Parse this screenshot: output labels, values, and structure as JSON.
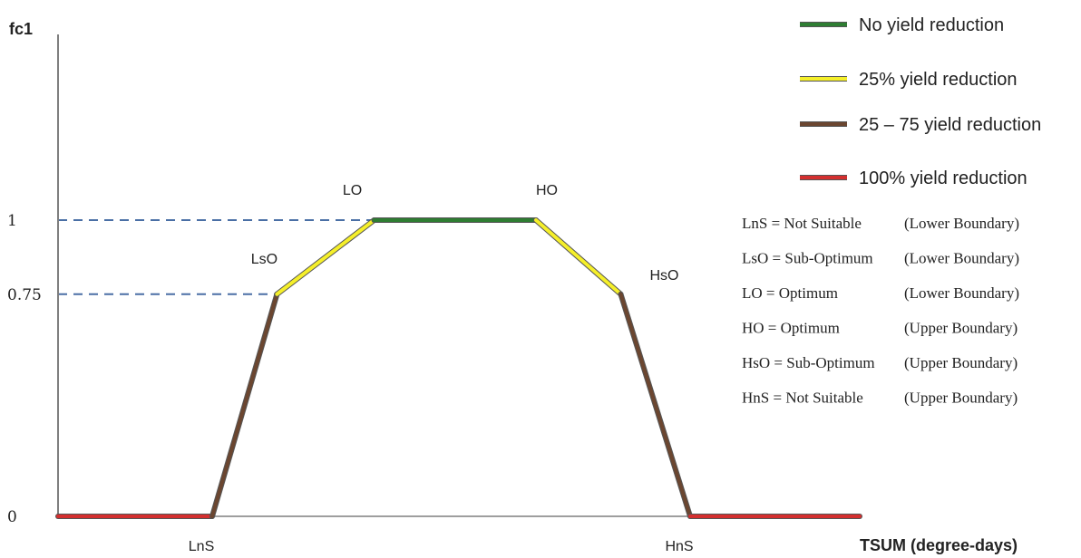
{
  "chart_data": {
    "type": "line",
    "title": "",
    "ylabel": "fc1",
    "xlabel": "TSUM (degree-days)",
    "ylim": [
      0,
      1.45
    ],
    "y_ticks": [
      {
        "value": 0,
        "label": "0"
      },
      {
        "value": 0.75,
        "label": "0.75"
      },
      {
        "value": 1,
        "label": "1"
      }
    ],
    "x_ticks": [
      {
        "key": "LnS",
        "label": "LnS"
      },
      {
        "key": "HnS",
        "label": "HnS"
      }
    ],
    "points": [
      {
        "key": "start",
        "x": 0,
        "y": 0
      },
      {
        "key": "LnS",
        "x": 1,
        "y": 0
      },
      {
        "key": "LsO",
        "x": 1.42,
        "y": 0.75
      },
      {
        "key": "LO",
        "x": 2.05,
        "y": 1
      },
      {
        "key": "HO",
        "x": 3.1,
        "y": 1
      },
      {
        "key": "HsO",
        "x": 3.65,
        "y": 0.75
      },
      {
        "key": "HnS",
        "x": 4.1,
        "y": 0
      },
      {
        "key": "end",
        "x": 5.2,
        "y": 0
      }
    ],
    "point_labels": [
      {
        "key": "LsO",
        "label": "LsO"
      },
      {
        "key": "LO",
        "label": "LO"
      },
      {
        "key": "HO",
        "label": "HO"
      },
      {
        "key": "HsO",
        "label": "HsO"
      }
    ],
    "segments": [
      {
        "from": "start",
        "to": "LnS",
        "class": "100% yield reduction"
      },
      {
        "from": "LnS",
        "to": "LsO",
        "class": "25 – 75 yield reduction"
      },
      {
        "from": "LsO",
        "to": "LO",
        "class": "25% yield reduction"
      },
      {
        "from": "LO",
        "to": "HO",
        "class": "No yield reduction"
      },
      {
        "from": "HO",
        "to": "HsO",
        "class": "25% yield reduction"
      },
      {
        "from": "HsO",
        "to": "HnS",
        "class": "25 – 75 yield reduction"
      },
      {
        "from": "HnS",
        "to": "end",
        "class": "100% yield reduction"
      }
    ],
    "reference_lines": [
      {
        "to": "LO",
        "y": 1
      },
      {
        "to": "LsO",
        "y": 0.75
      }
    ],
    "legend_position": "top-right",
    "legend": [
      {
        "label": "No yield reduction",
        "color": "#2e7d32"
      },
      {
        "label": "25% yield reduction",
        "color": "#f5ef2a"
      },
      {
        "label": "25 – 75 yield reduction",
        "color": "#6b4630"
      },
      {
        "label": "100% yield reduction",
        "color": "#d32f2f"
      }
    ],
    "definitions": [
      {
        "term": "LnS = Not Suitable",
        "boundary": "(Lower Boundary)"
      },
      {
        "term": "LsO = Sub-Optimum",
        "boundary": "(Lower Boundary)"
      },
      {
        "term": "LO = Optimum",
        "boundary": "(Lower Boundary)"
      },
      {
        "term": "HO = Optimum",
        "boundary": "(Upper Boundary)"
      },
      {
        "term": "HsO = Sub-Optimum",
        "boundary": "(Upper Boundary)"
      },
      {
        "term": "HnS = Not Suitable",
        "boundary": "(Upper Boundary)"
      }
    ],
    "colors": {
      "axis": "#7f7f7f",
      "reference": "#4a6fa5"
    }
  }
}
